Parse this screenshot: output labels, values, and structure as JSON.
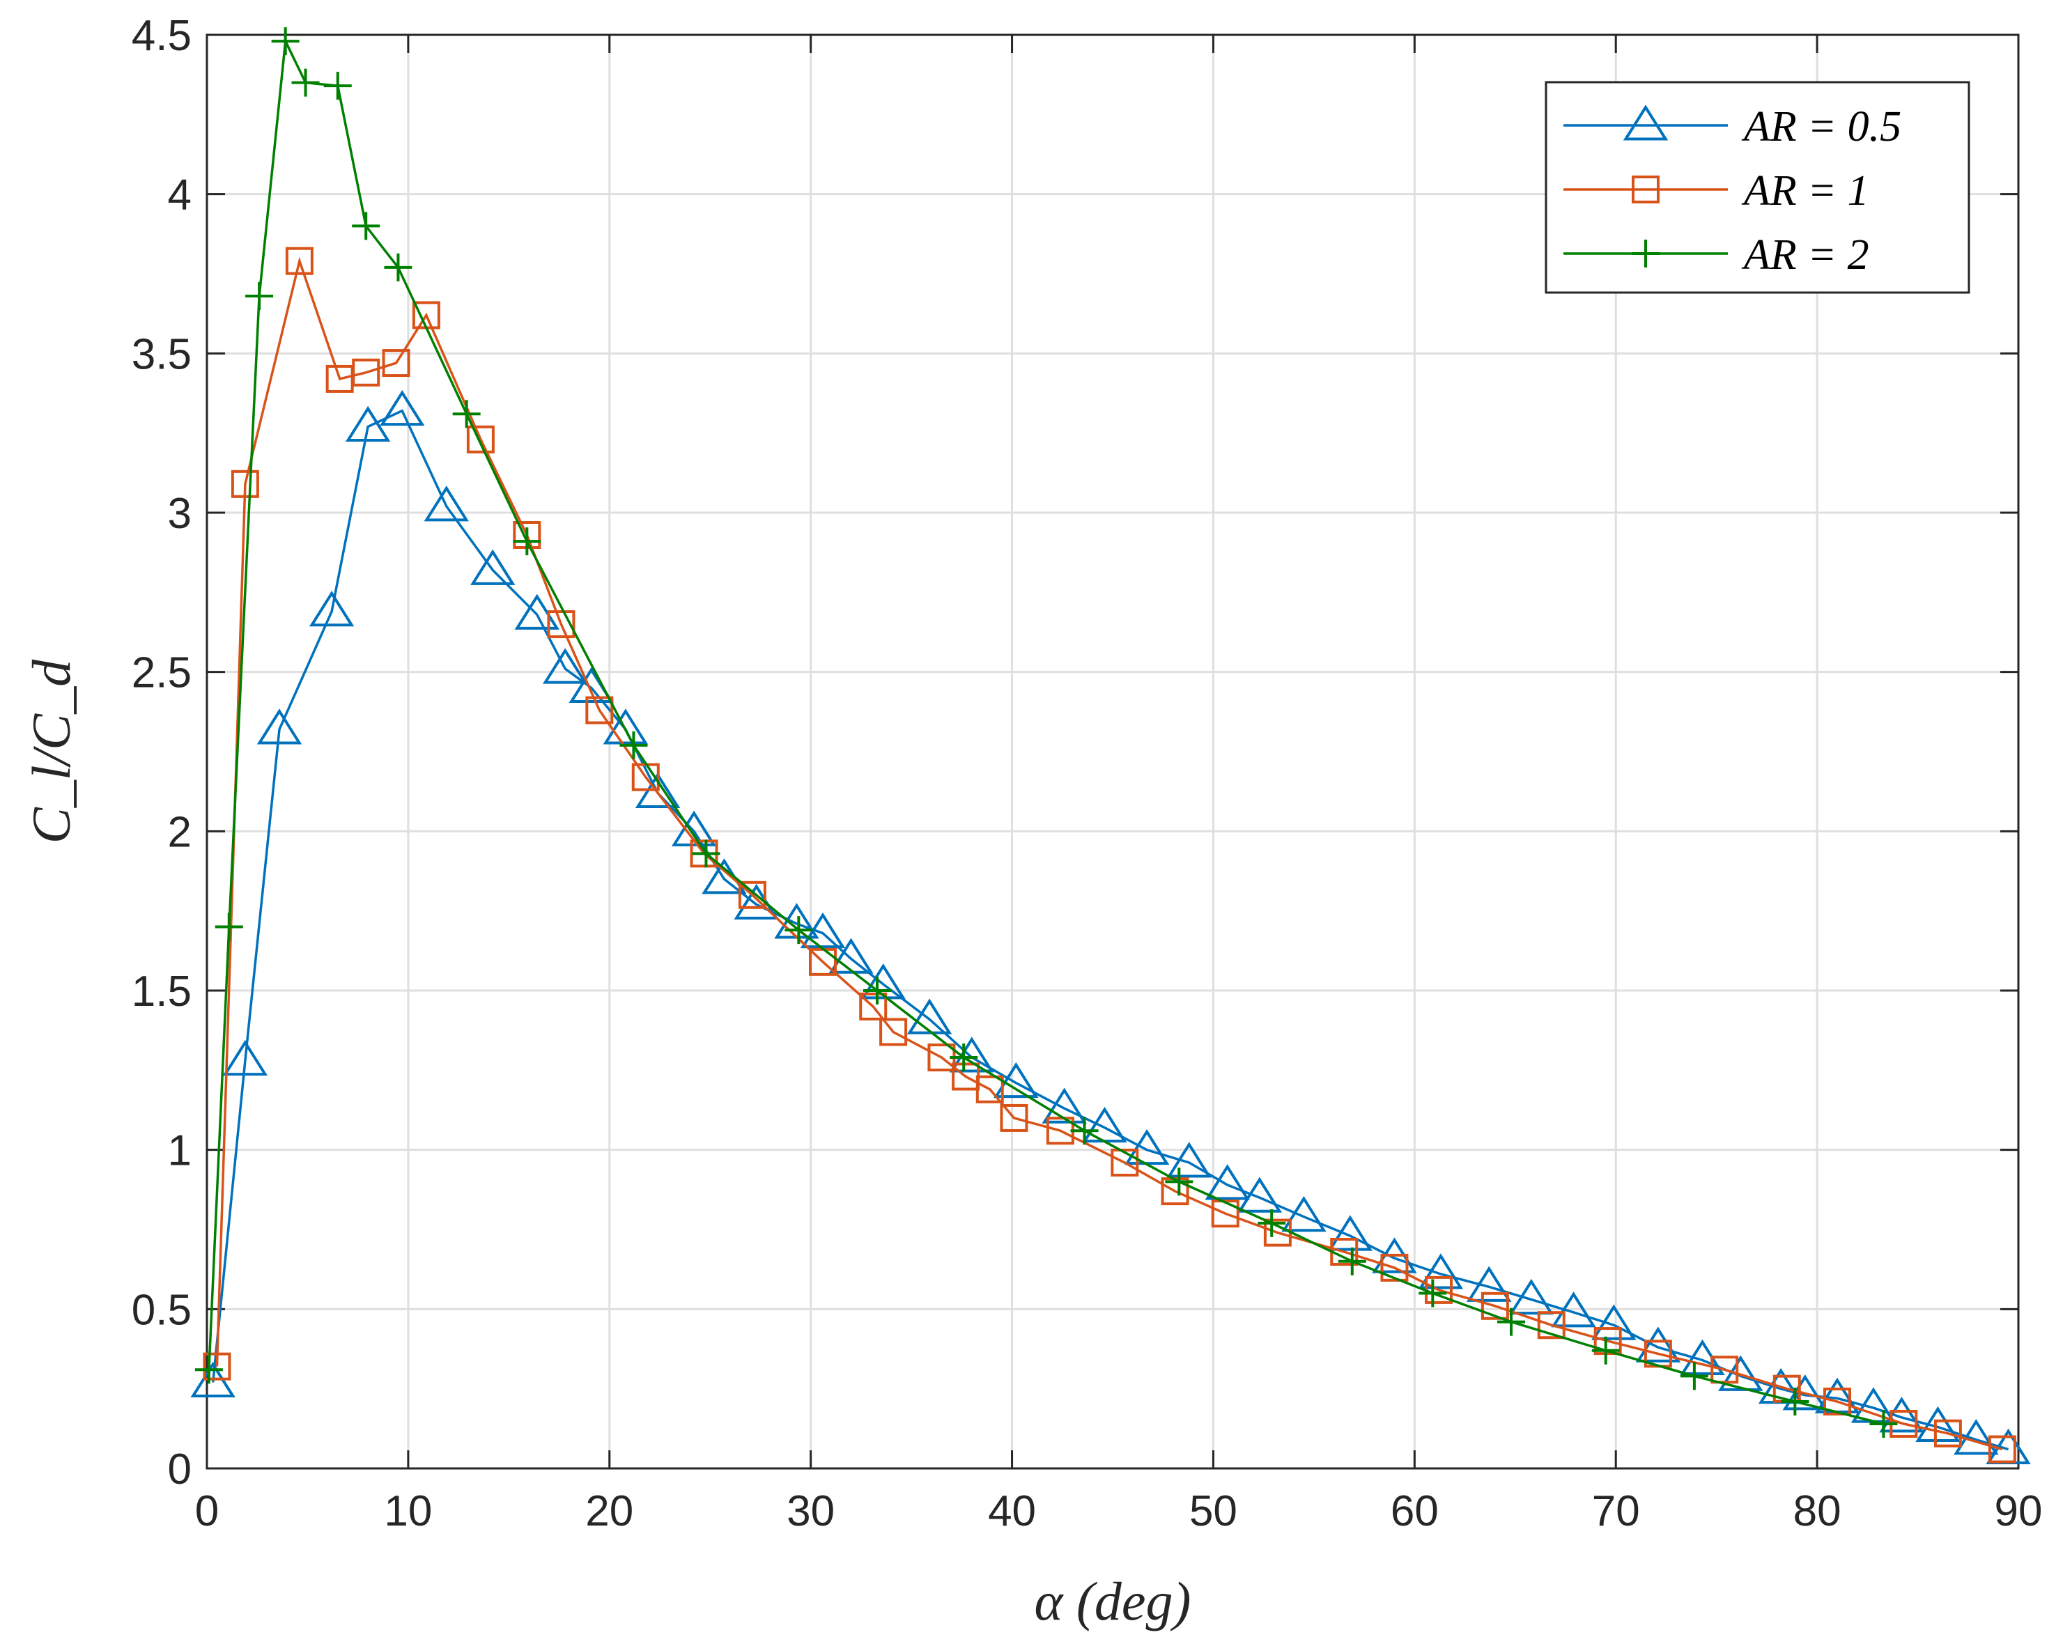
{
  "chart_data": {
    "type": "line",
    "title": "",
    "xlabel": "α (deg)",
    "ylabel": "C_l/C_d",
    "xlim": [
      0,
      90
    ],
    "ylim": [
      0,
      4.5
    ],
    "xticks": [
      "0",
      "10",
      "20",
      "30",
      "40",
      "50",
      "60",
      "70",
      "80",
      "90"
    ],
    "yticks": [
      "0",
      "0.5",
      "1",
      "1.5",
      "2",
      "2.5",
      "3",
      "3.5",
      "4",
      "4.5"
    ],
    "grid": true,
    "legend_position": "top-right",
    "series": [
      {
        "name": "AR = 0.5",
        "color": "#0072BD",
        "marker": "triangle",
        "x": [
          0.3,
          1.9,
          3.6,
          6.2,
          8.0,
          9.7,
          11.9,
          14.2,
          16.4,
          17.8,
          19.1,
          20.8,
          22.4,
          24.2,
          25.7,
          27.3,
          29.3,
          30.6,
          32.0,
          33.6,
          35.9,
          38.0,
          40.2,
          42.6,
          44.6,
          46.7,
          48.8,
          50.7,
          52.3,
          54.5,
          56.8,
          59.0,
          61.3,
          63.7,
          65.8,
          67.9,
          69.9,
          72.1,
          74.3,
          76.2,
          78.2,
          79.4,
          81.0,
          82.8,
          84.2,
          86.0,
          87.9,
          89.5
        ],
        "y": [
          0.27,
          1.28,
          2.32,
          2.69,
          3.27,
          3.32,
          3.02,
          2.82,
          2.68,
          2.51,
          2.45,
          2.32,
          2.12,
          2.0,
          1.85,
          1.77,
          1.71,
          1.68,
          1.6,
          1.52,
          1.41,
          1.29,
          1.21,
          1.13,
          1.07,
          1.0,
          0.96,
          0.89,
          0.85,
          0.79,
          0.73,
          0.66,
          0.61,
          0.57,
          0.53,
          0.49,
          0.45,
          0.38,
          0.34,
          0.29,
          0.25,
          0.23,
          0.22,
          0.19,
          0.16,
          0.13,
          0.09,
          0.06
        ]
      },
      {
        "name": "AR = 1",
        "color": "#D95319",
        "marker": "square",
        "x": [
          0.5,
          1.9,
          4.6,
          6.6,
          7.9,
          9.4,
          10.9,
          13.6,
          15.9,
          17.6,
          19.5,
          21.8,
          24.7,
          27.1,
          30.6,
          33.1,
          34.1,
          36.5,
          37.7,
          38.9,
          40.1,
          42.4,
          45.6,
          48.1,
          50.6,
          53.2,
          56.5,
          59.0,
          61.2,
          64.0,
          66.8,
          69.6,
          72.1,
          75.4,
          78.5,
          81.0,
          84.3,
          86.5,
          89.2
        ],
        "y": [
          0.32,
          3.09,
          3.79,
          3.42,
          3.44,
          3.47,
          3.62,
          3.23,
          2.93,
          2.65,
          2.38,
          2.17,
          1.93,
          1.8,
          1.59,
          1.45,
          1.37,
          1.29,
          1.23,
          1.19,
          1.1,
          1.06,
          0.96,
          0.87,
          0.8,
          0.74,
          0.68,
          0.63,
          0.56,
          0.51,
          0.45,
          0.4,
          0.36,
          0.31,
          0.25,
          0.21,
          0.14,
          0.11,
          0.06
        ]
      },
      {
        "name": "AR = 2",
        "color": "#008000",
        "marker": "plus",
        "x": [
          0.1,
          1.1,
          2.6,
          3.9,
          4.9,
          6.5,
          7.9,
          9.5,
          12.9,
          15.9,
          21.2,
          24.8,
          29.4,
          33.3,
          37.6,
          43.6,
          48.3,
          52.9,
          56.9,
          60.9,
          64.8,
          69.5,
          73.9,
          78.9,
          83.3
        ],
        "y": [
          0.31,
          1.7,
          3.68,
          4.48,
          4.35,
          4.34,
          3.9,
          3.77,
          3.31,
          2.91,
          2.27,
          1.93,
          1.69,
          1.5,
          1.29,
          1.06,
          0.9,
          0.77,
          0.65,
          0.55,
          0.46,
          0.37,
          0.29,
          0.21,
          0.14
        ]
      }
    ]
  }
}
